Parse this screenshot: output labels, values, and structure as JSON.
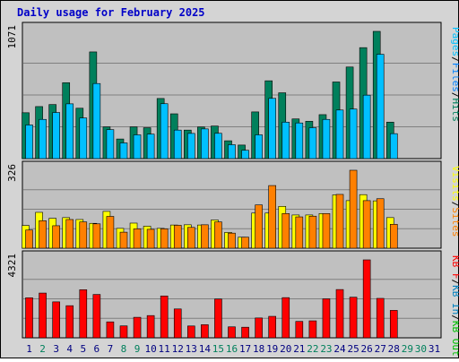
{
  "title": "Daily usage for February 2025",
  "colors": {
    "hits": "#00805c",
    "files": "#0080ff",
    "pages": "#00c0ff",
    "visits": "#ffff00",
    "sites": "#ff8000",
    "kb_out": "#00c000",
    "kb_in": "#0080c0",
    "kb_f": "#ff0000",
    "panel_bg": "#c0c0c0",
    "frame_bg": "#d4d4d4",
    "weekday": "#000080",
    "weekend": "#00805c"
  },
  "chart_data": [
    {
      "type": "bar",
      "label": "1071",
      "legend": [
        {
          "name": "Pages",
          "color": "#00c0ff"
        },
        {
          "name": "Files",
          "color": "#0080ff"
        },
        {
          "name": "Hits",
          "color": "#00805c"
        }
      ],
      "ylim": [
        0,
        1071
      ],
      "categories": [
        "1",
        "2",
        "3",
        "4",
        "5",
        "6",
        "7",
        "8",
        "9",
        "10",
        "11",
        "12",
        "13",
        "14",
        "15",
        "16",
        "17",
        "18",
        "19",
        "20",
        "21",
        "22",
        "23",
        "24",
        "25",
        "26",
        "27",
        "28",
        "29",
        "30",
        "31"
      ],
      "series": [
        {
          "name": "Hits",
          "values": [
            386,
            438,
            455,
            639,
            424,
            898,
            267,
            165,
            267,
            260,
            506,
            377,
            240,
            266,
            274,
            150,
            114,
            393,
            655,
            554,
            334,
            314,
            370,
            645,
            771,
            934,
            1071,
            307,
            0,
            0,
            0
          ]
        },
        {
          "name": "Files",
          "values": [
            0,
            0,
            0,
            0,
            0,
            0,
            0,
            0,
            0,
            0,
            0,
            0,
            0,
            0,
            0,
            0,
            0,
            0,
            0,
            0,
            0,
            0,
            0,
            0,
            0,
            0,
            0,
            0,
            0,
            0,
            0
          ]
        },
        {
          "name": "Pages",
          "values": [
            283,
            330,
            388,
            461,
            342,
            632,
            244,
            132,
            200,
            206,
            462,
            240,
            212,
            250,
            213,
            117,
            70,
            200,
            507,
            307,
            300,
            260,
            330,
            409,
            417,
            534,
            878,
            210,
            0,
            0,
            0
          ]
        }
      ]
    },
    {
      "type": "bar",
      "label": "326",
      "legend": [
        {
          "name": "Visits",
          "color": "#ffff00"
        },
        {
          "name": "Sites",
          "color": "#ff8000"
        }
      ],
      "ylim": [
        0,
        326
      ],
      "categories": [
        "1",
        "2",
        "3",
        "4",
        "5",
        "6",
        "7",
        "8",
        "9",
        "10",
        "11",
        "12",
        "13",
        "14",
        "15",
        "16",
        "17",
        "18",
        "19",
        "20",
        "21",
        "22",
        "23",
        "24",
        "25",
        "26",
        "27",
        "28",
        "29",
        "30",
        "31"
      ],
      "series": [
        {
          "name": "Visits",
          "values": [
            95,
            150,
            125,
            128,
            120,
            104,
            154,
            83,
            105,
            92,
            83,
            97,
            98,
            97,
            118,
            66,
            46,
            147,
            147,
            175,
            139,
            139,
            145,
            223,
            199,
            224,
            198,
            128,
            0,
            0,
            0
          ]
        },
        {
          "name": "Sites",
          "values": [
            76,
            115,
            94,
            120,
            110,
            102,
            133,
            67,
            81,
            79,
            81,
            96,
            87,
            98,
            110,
            63,
            46,
            181,
            262,
            145,
            131,
            134,
            145,
            225,
            326,
            199,
            207,
            100,
            0,
            0,
            0
          ]
        }
      ]
    },
    {
      "type": "bar",
      "label": "4321",
      "legend": [
        {
          "name": "KB F",
          "color": "#ff0000"
        },
        {
          "name": "KB In",
          "color": "#0080c0"
        },
        {
          "name": "KB Out",
          "color": "#00c000"
        }
      ],
      "ylim": [
        0,
        4321
      ],
      "categories": [
        "1",
        "2",
        "3",
        "4",
        "5",
        "6",
        "7",
        "8",
        "9",
        "10",
        "11",
        "12",
        "13",
        "14",
        "15",
        "16",
        "17",
        "18",
        "19",
        "20",
        "21",
        "22",
        "23",
        "24",
        "25",
        "26",
        "27",
        "28",
        "29",
        "30",
        "31"
      ],
      "series": [
        {
          "name": "KB F",
          "values": [
            2220,
            2480,
            1993,
            1780,
            2665,
            2403,
            883,
            660,
            1137,
            1233,
            2320,
            1600,
            656,
            727,
            2150,
            608,
            587,
            1100,
            1190,
            2227,
            909,
            941,
            2161,
            2676,
            2251,
            4321,
            2186,
            1520,
            0,
            0,
            0
          ]
        },
        {
          "name": "KB In",
          "values": [
            0,
            0,
            0,
            0,
            0,
            0,
            0,
            0,
            0,
            0,
            0,
            0,
            0,
            0,
            0,
            0,
            0,
            0,
            0,
            0,
            0,
            0,
            0,
            0,
            0,
            0,
            0,
            0,
            0,
            0,
            0
          ]
        },
        {
          "name": "KB Out",
          "values": [
            0,
            0,
            0,
            0,
            0,
            0,
            0,
            0,
            0,
            0,
            0,
            0,
            0,
            0,
            0,
            0,
            0,
            0,
            0,
            0,
            0,
            0,
            0,
            0,
            0,
            0,
            0,
            0,
            0,
            0,
            0
          ]
        }
      ]
    }
  ],
  "x_axis": {
    "days": [
      "1",
      "2",
      "3",
      "4",
      "5",
      "6",
      "7",
      "8",
      "9",
      "10",
      "11",
      "12",
      "13",
      "14",
      "15",
      "16",
      "17",
      "18",
      "19",
      "20",
      "21",
      "22",
      "23",
      "24",
      "25",
      "26",
      "27",
      "28",
      "29",
      "30",
      "31"
    ],
    "weekend": [
      false,
      true,
      false,
      false,
      false,
      false,
      false,
      true,
      true,
      false,
      false,
      false,
      false,
      false,
      true,
      true,
      false,
      false,
      false,
      false,
      false,
      true,
      true,
      false,
      false,
      false,
      false,
      false,
      true,
      true,
      false
    ]
  }
}
